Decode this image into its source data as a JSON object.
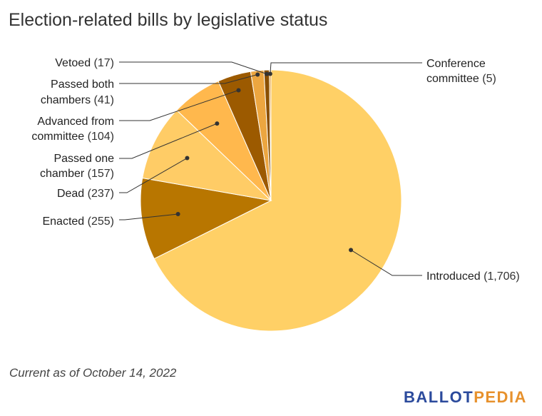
{
  "chart_data": {
    "type": "pie",
    "title": "Election-related bills by legislative status",
    "slices": [
      {
        "name": "Introduced",
        "value": 1706,
        "label": "Introduced",
        "value_text": "(1,706)",
        "color": "#ffd066"
      },
      {
        "name": "Enacted",
        "value": 255,
        "label": "Enacted",
        "value_text": "(255)",
        "color": "#b87600"
      },
      {
        "name": "Dead",
        "value": 237,
        "label": "Dead",
        "value_text": "(237)",
        "color": "#ffcc66"
      },
      {
        "name": "Passed one chamber",
        "value": 157,
        "label": "Passed one chamber",
        "value_text": "(157)",
        "color": "#ffb84d"
      },
      {
        "name": "Advanced from committee",
        "value": 104,
        "label": "Advanced from committee",
        "value_text": "(104)",
        "color": "#9c5a00"
      },
      {
        "name": "Passed both chambers",
        "value": 41,
        "label": "Passed both chambers",
        "value_text": "(41)",
        "color": "#eca640"
      },
      {
        "name": "Vetoed",
        "value": 17,
        "label": "Vetoed",
        "value_text": "(17)",
        "color": "#8a4f00"
      },
      {
        "name": "Conference committee",
        "value": 5,
        "label": "Conference committee",
        "value_text": "(5)",
        "color": "#e09a30"
      }
    ]
  },
  "caption": "Current as of October 14, 2022",
  "logo": {
    "part1": "BALLOT",
    "part2": "PEDIA"
  },
  "colors": {
    "slice_border": "#ffffff",
    "leader_line": "#333333"
  }
}
